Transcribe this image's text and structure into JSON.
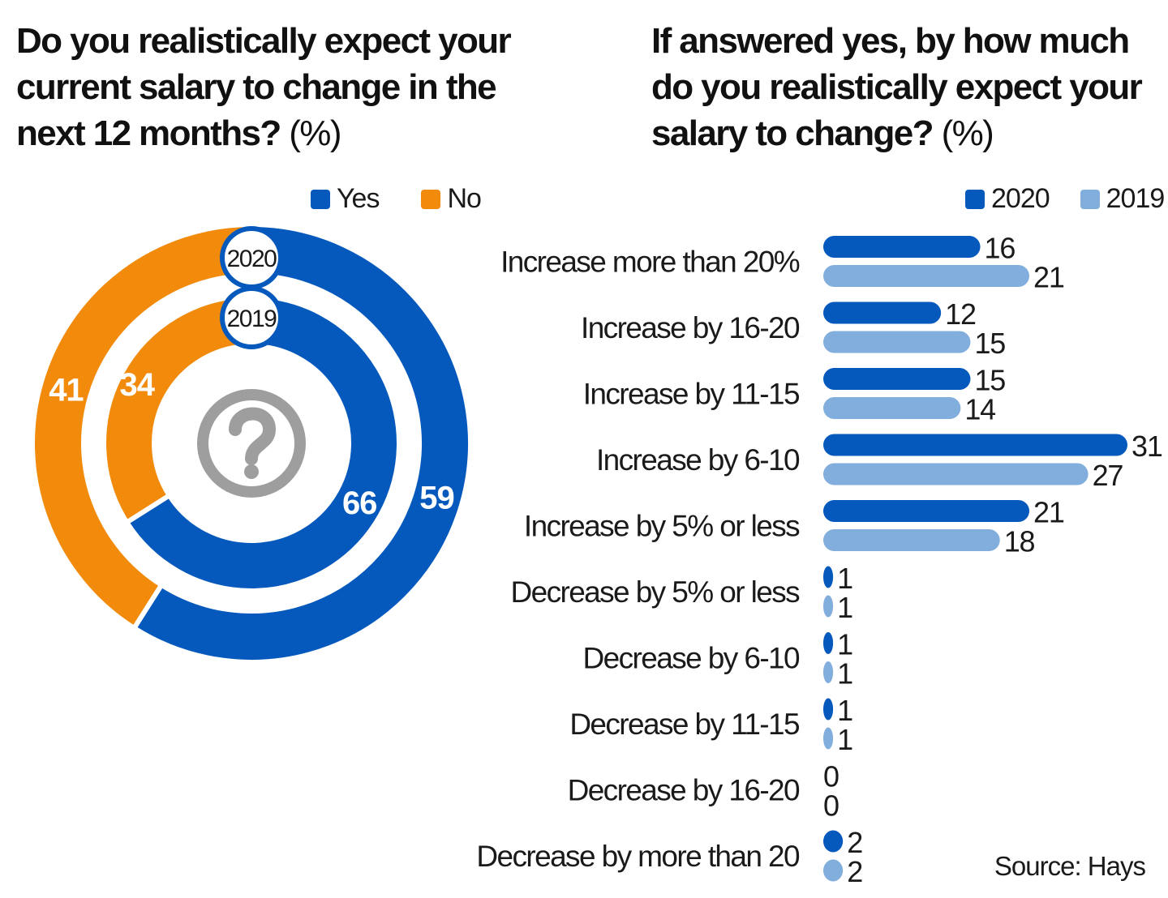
{
  "colors": {
    "yes": "#0559BD",
    "no": "#F28A0C",
    "y2020": "#0559BD",
    "y2019": "#82AEDD",
    "question": "#9E9E9E"
  },
  "icons": [
    "question-mark-icon"
  ],
  "left": {
    "title": "Do you realistically expect your current salary to change in the next 12 months?",
    "unit": "(%)",
    "legend": [
      {
        "label": "Yes",
        "color_key": "yes"
      },
      {
        "label": "No",
        "color_key": "no"
      }
    ]
  },
  "right": {
    "title": "If answered yes, by how much do you realistically expect your salary to change?",
    "unit": "(%)",
    "legend": [
      {
        "label": "2020",
        "color_key": "y2020"
      },
      {
        "label": "2019",
        "color_key": "y2019"
      }
    ]
  },
  "source": "Source: Hays",
  "chart_data": [
    {
      "type": "pie",
      "title": "Do you realistically expect your current salary to change in the next 12 months? (%)",
      "categories": [
        "Yes",
        "No"
      ],
      "series": [
        {
          "name": "2020",
          "values": [
            59,
            41
          ]
        },
        {
          "name": "2019",
          "values": [
            66,
            34
          ]
        }
      ],
      "legend_position": "top-right"
    },
    {
      "type": "bar",
      "orientation": "horizontal",
      "title": "If answered yes, by how much do you realistically expect your salary to change? (%)",
      "categories": [
        "Increase more than 20%",
        "Increase by 16-20",
        "Increase by 11-15",
        "Increase by 6-10",
        "Increase by 5% or less",
        "Decrease by 5% or less",
        "Decrease by 6-10",
        "Decrease by 11-15",
        "Decrease by 16-20",
        "Decrease by more  than 20"
      ],
      "series": [
        {
          "name": "2020",
          "values": [
            16,
            12,
            15,
            31,
            21,
            1,
            1,
            1,
            0,
            2
          ]
        },
        {
          "name": "2019",
          "values": [
            21,
            15,
            14,
            27,
            18,
            1,
            1,
            1,
            0,
            2
          ]
        }
      ],
      "xlim": [
        0,
        31
      ],
      "grid": false,
      "legend_position": "top-right"
    }
  ]
}
